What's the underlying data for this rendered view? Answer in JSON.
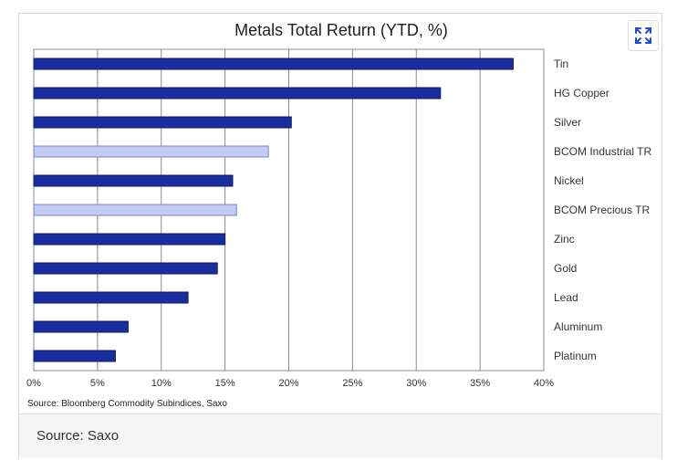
{
  "chart_data": {
    "type": "bar",
    "orientation": "horizontal",
    "title": "Metals Total Return (YTD, %)",
    "categories": [
      "Tin",
      "HG Copper",
      "Silver",
      "BCOM Industrial TR",
      "Nickel",
      "BCOM Precious TR",
      "Zinc",
      "Gold",
      "Lead",
      "Aluminum",
      "Platinum"
    ],
    "values": [
      37.6,
      31.9,
      20.2,
      18.4,
      15.6,
      15.9,
      15.0,
      14.4,
      12.1,
      7.4,
      6.4
    ],
    "highlight": [
      false,
      false,
      false,
      true,
      false,
      true,
      false,
      false,
      false,
      false,
      false
    ],
    "xlim": [
      0,
      40
    ],
    "xticks": [
      "0%",
      "5%",
      "10%",
      "15%",
      "20%",
      "25%",
      "30%",
      "35%",
      "40%"
    ],
    "xlabel": "",
    "ylabel": "",
    "grid": "vertical",
    "colors": {
      "primary": "#1a2d9c",
      "highlight": "#c3cbf2"
    },
    "source_note": "Source: Bloomberg Commodity Subindices, Saxo"
  },
  "footer": {
    "source": "Source: Saxo"
  },
  "icons": {
    "expand": "expand-icon"
  }
}
